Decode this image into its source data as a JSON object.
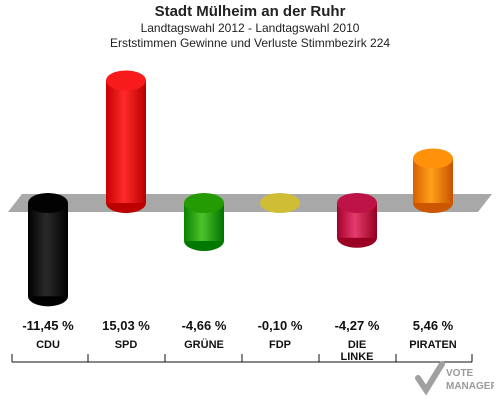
{
  "chart_data": {
    "type": "bar",
    "title": "Stadt Mülheim an der Ruhr",
    "subtitle_1": "Landtagswahl 2012 - Landtagswahl 2010",
    "subtitle_2": "Erststimmen Gewinne und Verluste Stimmbezirk 224",
    "categories": [
      "CDU",
      "SPD",
      "GRÜNE",
      "FDP",
      "DIE LINKE",
      "PIRATEN"
    ],
    "values": [
      -11.45,
      15.03,
      -4.66,
      -0.1,
      -4.27,
      5.46
    ],
    "value_labels": [
      "-11,45 %",
      "15,03 %",
      "-4,66 %",
      "-0,10 %",
      "-4,27 %",
      "5,46 %"
    ],
    "colors": [
      "#111111",
      "#ee1111",
      "#33aa11",
      "#ddcc44",
      "#cc2255",
      "#ff8800"
    ],
    "ylim": [
      -12,
      16
    ],
    "grid": false
  },
  "logo": {
    "line1": "VOTE",
    "line2": "MANAGER"
  }
}
